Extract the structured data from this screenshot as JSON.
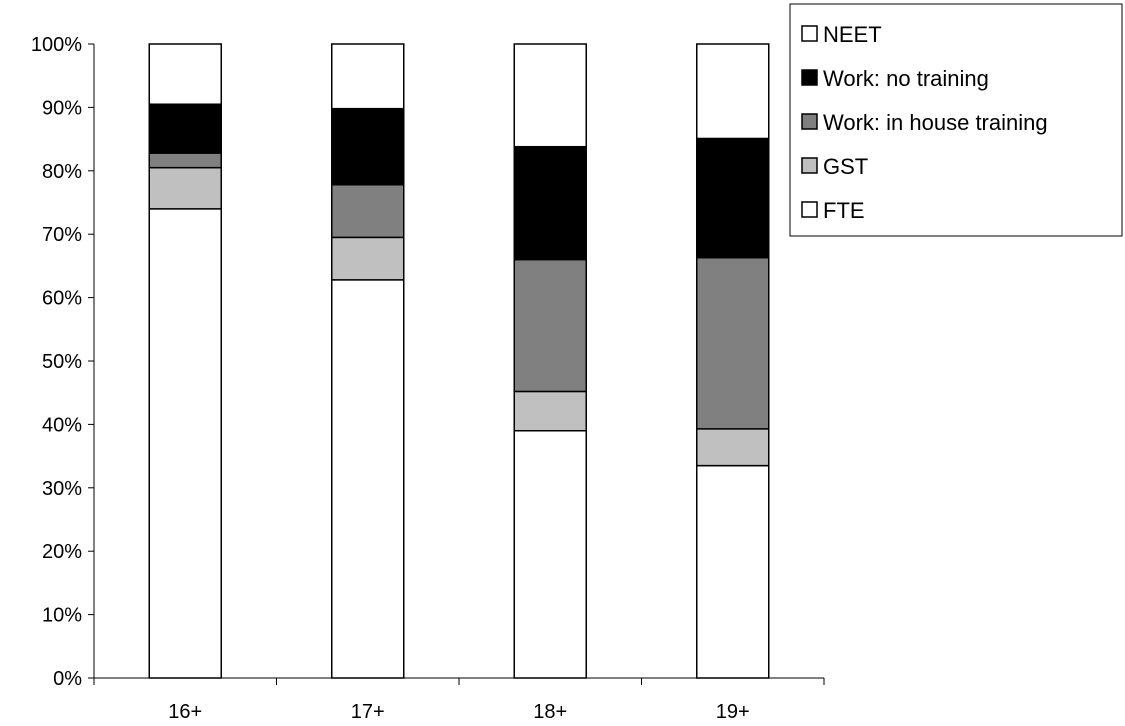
{
  "chart_data": {
    "type": "bar",
    "stacked": true,
    "categories": [
      "16+",
      "17+",
      "18+",
      "19+"
    ],
    "series": [
      {
        "name": "FTE",
        "values": [
          74,
          62.8,
          39,
          33.5
        ],
        "color": "#ffffff"
      },
      {
        "name": "GST",
        "values": [
          6.5,
          6.7,
          6.2,
          5.8
        ],
        "color": "#c0c0c0"
      },
      {
        "name": "Work: in house training",
        "values": [
          2.3,
          8.3,
          20.8,
          27.0
        ],
        "color": "#808080"
      },
      {
        "name": "Work: no training",
        "values": [
          7.7,
          12.0,
          17.8,
          18.8
        ],
        "color": "#000000"
      },
      {
        "name": "NEET",
        "values": [
          9.5,
          10.2,
          16.2,
          14.9
        ],
        "color": "#ffffff"
      }
    ],
    "legend_order": [
      "NEET",
      "Work: no training",
      "Work: in house training",
      "GST",
      "FTE"
    ],
    "y_ticks": [
      "0%",
      "10%",
      "20%",
      "30%",
      "40%",
      "50%",
      "60%",
      "70%",
      "80%",
      "90%",
      "100%"
    ],
    "ylim": [
      0,
      100
    ],
    "title": "",
    "xlabel": "",
    "ylabel": "",
    "grid": false,
    "legend_position": "top-right"
  }
}
